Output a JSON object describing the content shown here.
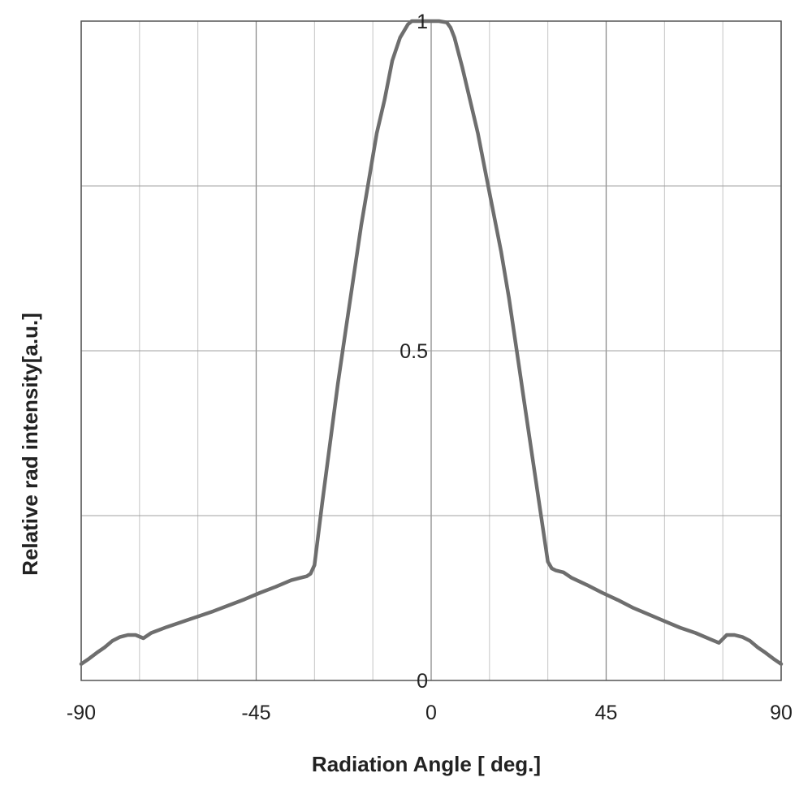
{
  "chart_data": {
    "type": "line",
    "title": "",
    "xlabel": "Radiation Angle  [ deg.]",
    "ylabel": "Relative rad intensity[a.u.]",
    "xlim": [
      -90,
      90
    ],
    "ylim": [
      0,
      1
    ],
    "x_ticks": [
      {
        "value": -90,
        "label": "-90"
      },
      {
        "value": -45,
        "label": "-45"
      },
      {
        "value": 0,
        "label": "0"
      },
      {
        "value": 45,
        "label": "45"
      },
      {
        "value": 90,
        "label": "90"
      }
    ],
    "y_ticks": [
      {
        "value": 0,
        "label": "0"
      },
      {
        "value": 0.5,
        "label": "0.5"
      },
      {
        "value": 1,
        "label": "1"
      }
    ],
    "x_grid": [
      -90,
      -75,
      -60,
      -45,
      -30,
      -15,
      0,
      15,
      30,
      45,
      60,
      75,
      90
    ],
    "y_grid": [
      0,
      0.25,
      0.5,
      0.75,
      1
    ],
    "grid": true,
    "series": [
      {
        "color": "#6e6e6e",
        "x": [
          -90,
          -88,
          -86,
          -84,
          -82,
          -80,
          -78,
          -76,
          -74,
          -72,
          -68,
          -64,
          -60,
          -56,
          -52,
          -48,
          -44,
          -40,
          -36,
          -34,
          -32,
          -31,
          -30,
          -28,
          -26,
          -24,
          -22,
          -20,
          -18,
          -16,
          -14,
          -12,
          -10,
          -8,
          -6,
          -5,
          -4,
          -2,
          0,
          2,
          4,
          5,
          6,
          8,
          10,
          12,
          14,
          16,
          18,
          20,
          22,
          24,
          26,
          28,
          30,
          31,
          32,
          34,
          36,
          40,
          44,
          48,
          52,
          56,
          60,
          64,
          68,
          72,
          74,
          76,
          78,
          80,
          82,
          84,
          86,
          88,
          90
        ],
        "y": [
          0.025,
          0.033,
          0.042,
          0.05,
          0.06,
          0.066,
          0.069,
          0.069,
          0.064,
          0.072,
          0.081,
          0.089,
          0.097,
          0.105,
          0.114,
          0.123,
          0.133,
          0.142,
          0.152,
          0.155,
          0.158,
          0.162,
          0.175,
          0.27,
          0.36,
          0.45,
          0.53,
          0.61,
          0.69,
          0.76,
          0.83,
          0.88,
          0.94,
          0.975,
          0.995,
          1.0,
          1.0,
          1.0,
          1.0,
          1.0,
          0.998,
          0.99,
          0.975,
          0.93,
          0.88,
          0.83,
          0.77,
          0.71,
          0.65,
          0.58,
          0.5,
          0.42,
          0.34,
          0.26,
          0.18,
          0.17,
          0.167,
          0.164,
          0.156,
          0.145,
          0.133,
          0.122,
          0.11,
          0.1,
          0.09,
          0.08,
          0.072,
          0.062,
          0.057,
          0.069,
          0.069,
          0.066,
          0.06,
          0.05,
          0.042,
          0.033,
          0.025
        ]
      }
    ]
  }
}
